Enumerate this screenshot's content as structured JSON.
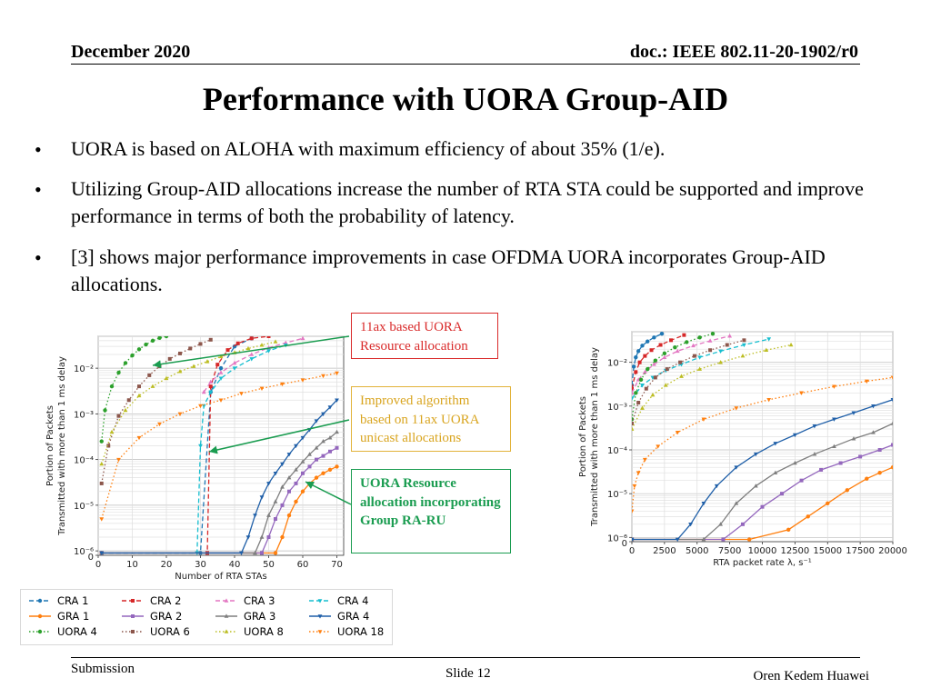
{
  "header": {
    "date": "December 2020",
    "doc": "doc.: IEEE 802.11-20-1902/r0"
  },
  "title": "Performance with UORA Group-AID",
  "bullets": [
    "UORA is based on ALOHA with maximum efficiency of about 35% (1/e).",
    "Utilizing Group-AID allocations increase the number of RTA STA could be supported and improve performance in terms of both the probability of latency.",
    "[3] shows major performance improvements in case OFDMA UORA incorporates Group-AID allocations."
  ],
  "bullet_symbol": "•",
  "callouts": {
    "c1": {
      "text": "11ax based UORA Resource allocation",
      "color": "#d92a2a"
    },
    "c2": {
      "text": "Improved algorithm based on 11ax UORA unicast allocations",
      "color": "#d9a520"
    },
    "c3": {
      "text": "UORA Resource allocation incorporating Group RA-RU",
      "color": "#1a9c50"
    }
  },
  "footer": {
    "submission": "Submission",
    "slide": "Slide 12",
    "author": "Oren Kedem Huawei"
  },
  "chart_data": [
    {
      "type": "line",
      "xlabel": "Number of RTA STAs",
      "ylabel": "Portion of Packets\nTransmitted with more than 1 ms delay",
      "yscale": "log",
      "xlim": [
        0,
        72
      ],
      "ylim": [
        8e-07,
        0.05
      ],
      "xticks": [
        0,
        10,
        20,
        30,
        40,
        50,
        60,
        70
      ],
      "yticks": [
        "10⁻²",
        "10⁻³",
        "10⁻⁴",
        "10⁻⁵",
        "10⁻⁶",
        "0"
      ],
      "grid": true,
      "series": [
        {
          "name": "CRA 1",
          "color": "#1f77b4",
          "style": "dashed",
          "x": [
            1,
            30,
            33,
            36,
            40,
            45
          ],
          "y": [
            9e-07,
            9e-07,
            0.003,
            0.01,
            0.03,
            0.045
          ]
        },
        {
          "name": "CRA 2",
          "color": "#d62728",
          "style": "dashed",
          "x": [
            1,
            32,
            33,
            35,
            38,
            41,
            45,
            50
          ],
          "y": [
            9e-07,
            9e-07,
            0.004,
            0.012,
            0.025,
            0.035,
            0.045,
            0.05
          ]
        },
        {
          "name": "CRA 3",
          "color": "#e377c2",
          "style": "dashed",
          "x": [
            31,
            33,
            36,
            40,
            45,
            50,
            55,
            60
          ],
          "y": [
            0.003,
            0.005,
            0.008,
            0.013,
            0.02,
            0.028,
            0.036,
            0.045
          ]
        },
        {
          "name": "CRA 4",
          "color": "#17becf",
          "style": "dashed",
          "x": [
            1,
            29,
            30,
            31,
            33,
            36,
            40,
            45,
            50,
            55
          ],
          "y": [
            9e-07,
            9e-07,
            0.0002,
            0.0015,
            0.003,
            0.006,
            0.01,
            0.016,
            0.024,
            0.032
          ]
        },
        {
          "name": "GRA 1",
          "color": "#ff7f0e",
          "style": "solid",
          "x": [
            1,
            52,
            54,
            56,
            58,
            60,
            62,
            64,
            66,
            68,
            70
          ],
          "y": [
            9e-07,
            9e-07,
            2e-06,
            6e-06,
            1.2e-05,
            2e-05,
            3e-05,
            4e-05,
            5e-05,
            6e-05,
            7e-05
          ]
        },
        {
          "name": "GRA 2",
          "color": "#9467bd",
          "style": "solid",
          "x": [
            1,
            48,
            50,
            52,
            54,
            56,
            58,
            60,
            62,
            64,
            66,
            68,
            70
          ],
          "y": [
            9e-07,
            9e-07,
            2e-06,
            5e-06,
            1e-05,
            2e-05,
            3e-05,
            5e-05,
            7e-05,
            0.0001,
            0.00012,
            0.00015,
            0.00018
          ]
        },
        {
          "name": "GRA 3",
          "color": "#7f7f7f",
          "style": "solid",
          "x": [
            1,
            46,
            48,
            50,
            52,
            54,
            56,
            58,
            60,
            62,
            64,
            66,
            68,
            70
          ],
          "y": [
            9e-07,
            9e-07,
            2e-06,
            6e-06,
            1.2e-05,
            2.5e-05,
            4e-05,
            6e-05,
            9e-05,
            0.00013,
            0.00018,
            0.00025,
            0.0003,
            0.0004
          ]
        },
        {
          "name": "GRA 4",
          "color": "#1f5fa8",
          "style": "solid",
          "x": [
            1,
            42,
            44,
            46,
            48,
            50,
            52,
            54,
            56,
            58,
            60,
            62,
            64,
            66,
            68,
            70
          ],
          "y": [
            9e-07,
            9e-07,
            2e-06,
            6e-06,
            1.5e-05,
            3e-05,
            5e-05,
            8e-05,
            0.00013,
            0.0002,
            0.0003,
            0.00045,
            0.0007,
            0.001,
            0.0014,
            0.002
          ]
        },
        {
          "name": "UORA 4",
          "color": "#2ca02c",
          "style": "dotted",
          "x": [
            1,
            2,
            4,
            6,
            8,
            10,
            12,
            14,
            16,
            18,
            20
          ],
          "y": [
            0.00025,
            0.0012,
            0.004,
            0.008,
            0.013,
            0.019,
            0.026,
            0.033,
            0.04,
            0.046,
            0.05
          ]
        },
        {
          "name": "UORA 6",
          "color": "#8c564b",
          "style": "dotted",
          "x": [
            1,
            3,
            6,
            9,
            12,
            15,
            18,
            21,
            24,
            27,
            30,
            33
          ],
          "y": [
            3e-05,
            0.0002,
            0.0009,
            0.002,
            0.004,
            0.007,
            0.011,
            0.016,
            0.021,
            0.027,
            0.034,
            0.042
          ]
        },
        {
          "name": "UORA 8",
          "color": "#bcbd22",
          "style": "dotted",
          "x": [
            1,
            4,
            8,
            12,
            16,
            20,
            24,
            28,
            32,
            36,
            40,
            44,
            48,
            52
          ],
          "y": [
            8e-05,
            0.0004,
            0.0012,
            0.0025,
            0.004,
            0.006,
            0.0085,
            0.011,
            0.014,
            0.018,
            0.022,
            0.027,
            0.032,
            0.038
          ]
        },
        {
          "name": "UORA 18",
          "color": "#ff7f0e",
          "style": "dotted",
          "x": [
            1,
            6,
            12,
            18,
            24,
            30,
            36,
            42,
            48,
            54,
            60,
            66,
            70
          ],
          "y": [
            5e-06,
            0.0001,
            0.0003,
            0.0006,
            0.001,
            0.0015,
            0.002,
            0.0028,
            0.0036,
            0.0045,
            0.0055,
            0.0068,
            0.0078
          ]
        }
      ]
    },
    {
      "type": "line",
      "xlabel": "RTA packet rate λ, s⁻¹",
      "ylabel": "Portion of Packets\nTransmitted with more than 1 ms delay",
      "yscale": "log",
      "xlim": [
        0,
        20000
      ],
      "ylim": [
        8e-07,
        0.05
      ],
      "xticks": [
        0,
        2500,
        5000,
        7500,
        10000,
        12500,
        15000,
        17500,
        20000
      ],
      "yticks": [
        "10⁻²",
        "10⁻³",
        "10⁻⁴",
        "10⁻⁵",
        "10⁻⁶",
        "0"
      ],
      "grid": true,
      "series": [
        {
          "name": "CRA 1",
          "color": "#1f77b4",
          "style": "dashed",
          "x": [
            0,
            150,
            300,
            500,
            800,
            1200,
            1700,
            2300
          ],
          "y": [
            0.003,
            0.008,
            0.013,
            0.018,
            0.024,
            0.03,
            0.037,
            0.045
          ]
        },
        {
          "name": "CRA 2",
          "color": "#d62728",
          "style": "dashed",
          "x": [
            0,
            300,
            600,
            1000,
            1500,
            2200,
            3000,
            4000
          ],
          "y": [
            0.0025,
            0.006,
            0.01,
            0.014,
            0.019,
            0.025,
            0.032,
            0.042
          ]
        },
        {
          "name": "CRA 3",
          "color": "#e377c2",
          "style": "dashed",
          "x": [
            0,
            500,
            1000,
            1700,
            2500,
            3500,
            4700,
            6000,
            7500
          ],
          "y": [
            0.002,
            0.004,
            0.006,
            0.009,
            0.013,
            0.018,
            0.024,
            0.031,
            0.04
          ]
        },
        {
          "name": "CRA 4",
          "color": "#17becf",
          "style": "dashed",
          "x": [
            0,
            800,
            1600,
            2600,
            3800,
            5200,
            6800,
            8600,
            10500
          ],
          "y": [
            0.0015,
            0.003,
            0.0045,
            0.0065,
            0.009,
            0.013,
            0.018,
            0.025,
            0.034
          ]
        },
        {
          "name": "GRA 1",
          "color": "#ff7f0e",
          "style": "solid",
          "x": [
            0,
            9000,
            12000,
            13500,
            15000,
            16500,
            18000,
            19000,
            20000
          ],
          "y": [
            9e-07,
            9e-07,
            1.5e-06,
            3e-06,
            6e-06,
            1.2e-05,
            2.2e-05,
            3e-05,
            4e-05
          ]
        },
        {
          "name": "GRA 2",
          "color": "#9467bd",
          "style": "solid",
          "x": [
            0,
            7000,
            8500,
            10000,
            11500,
            13000,
            14500,
            16000,
            17500,
            19000,
            20000
          ],
          "y": [
            9e-07,
            9e-07,
            2e-06,
            5e-06,
            1e-05,
            2e-05,
            3.5e-05,
            5e-05,
            7e-05,
            0.0001,
            0.00013
          ]
        },
        {
          "name": "GRA 3",
          "color": "#7f7f7f",
          "style": "solid",
          "x": [
            0,
            5500,
            6800,
            8000,
            9500,
            11000,
            12500,
            14000,
            15500,
            17000,
            18500,
            20000
          ],
          "y": [
            9e-07,
            9e-07,
            2e-06,
            6e-06,
            1.5e-05,
            3e-05,
            5e-05,
            8e-05,
            0.00012,
            0.00018,
            0.00025,
            0.0004
          ]
        },
        {
          "name": "GRA 4",
          "color": "#1f5fa8",
          "style": "solid",
          "x": [
            0,
            3500,
            4500,
            5500,
            6500,
            8000,
            9500,
            11000,
            12500,
            14000,
            15500,
            17000,
            18500,
            20000
          ],
          "y": [
            9e-07,
            9e-07,
            2e-06,
            6e-06,
            1.5e-05,
            4e-05,
            8e-05,
            0.00014,
            0.00022,
            0.00035,
            0.0005,
            0.0007,
            0.001,
            0.0014
          ]
        },
        {
          "name": "UORA 4",
          "color": "#2ca02c",
          "style": "dotted",
          "x": [
            0,
            300,
            700,
            1200,
            1800,
            2500,
            3300,
            4200,
            5200,
            6200
          ],
          "y": [
            0.0005,
            0.002,
            0.004,
            0.007,
            0.011,
            0.016,
            0.022,
            0.029,
            0.037,
            0.045
          ]
        },
        {
          "name": "UORA 6",
          "color": "#8c564b",
          "style": "dotted",
          "x": [
            0,
            500,
            1100,
            1800,
            2700,
            3700,
            4800,
            6000,
            7300,
            8600
          ],
          "y": [
            0.0004,
            0.0012,
            0.0025,
            0.0045,
            0.007,
            0.01,
            0.014,
            0.019,
            0.025,
            0.032
          ]
        },
        {
          "name": "UORA 8",
          "color": "#bcbd22",
          "style": "dotted",
          "x": [
            0,
            800,
            1600,
            2600,
            3800,
            5200,
            6800,
            8500,
            10300,
            12200
          ],
          "y": [
            0.0003,
            0.0009,
            0.0018,
            0.003,
            0.0048,
            0.007,
            0.01,
            0.014,
            0.019,
            0.025
          ]
        },
        {
          "name": "UORA 18",
          "color": "#ff7f0e",
          "style": "dotted",
          "x": [
            0,
            200,
            500,
            1000,
            2000,
            3500,
            5500,
            8000,
            10500,
            13000,
            15500,
            18000,
            20000
          ],
          "y": [
            4e-06,
            1.5e-05,
            3e-05,
            6e-05,
            0.00012,
            0.00025,
            0.0005,
            0.0009,
            0.0014,
            0.002,
            0.0028,
            0.0037,
            0.0045
          ]
        }
      ]
    }
  ],
  "legend": [
    {
      "label": "CRA 1",
      "color": "#1f77b4",
      "style": "dashed"
    },
    {
      "label": "CRA 2",
      "color": "#d62728",
      "style": "dashed"
    },
    {
      "label": "CRA 3",
      "color": "#e377c2",
      "style": "dashed"
    },
    {
      "label": "CRA 4",
      "color": "#17becf",
      "style": "dashed"
    },
    {
      "label": "GRA 1",
      "color": "#ff7f0e",
      "style": "solid"
    },
    {
      "label": "GRA 2",
      "color": "#9467bd",
      "style": "solid"
    },
    {
      "label": "GRA 3",
      "color": "#7f7f7f",
      "style": "solid"
    },
    {
      "label": "GRA 4",
      "color": "#1f5fa8",
      "style": "solid"
    },
    {
      "label": "UORA 4",
      "color": "#2ca02c",
      "style": "dotted"
    },
    {
      "label": "UORA 6",
      "color": "#8c564b",
      "style": "dotted"
    },
    {
      "label": "UORA 8",
      "color": "#bcbd22",
      "style": "dotted"
    },
    {
      "label": "UORA 18",
      "color": "#ff7f0e",
      "style": "dotted"
    }
  ]
}
